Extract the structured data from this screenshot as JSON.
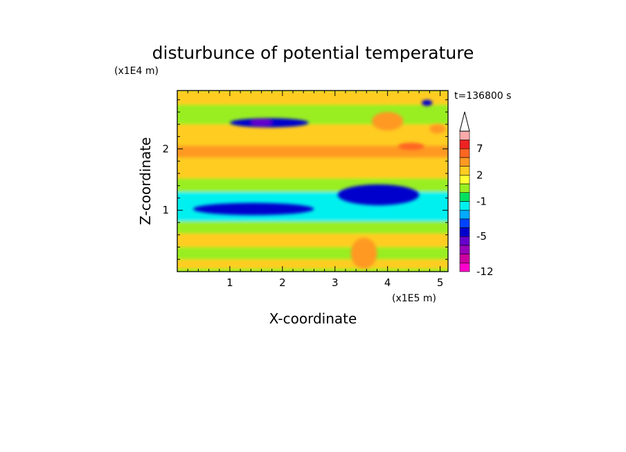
{
  "chart_data": {
    "type": "heatmap",
    "title": "disturbunce of potential temperature",
    "time_label": "t=136800 s",
    "xlabel": "X-coordinate",
    "ylabel": "Z-coordinate",
    "x_unit": "(x1E5 m)",
    "y_unit": "(x1E4 m)",
    "xlim": [
      0,
      5.15
    ],
    "ylim": [
      0,
      2.95
    ],
    "x_ticks": [
      1,
      2,
      3,
      4,
      5
    ],
    "y_ticks": [
      1,
      2
    ],
    "colorbar": {
      "boundaries": [
        -12,
        -10,
        -8,
        -6,
        -5,
        -4,
        -3,
        -2,
        -1,
        0,
        1,
        2,
        3,
        5,
        7,
        9,
        11
      ],
      "colors": [
        "#ff00cc",
        "#cc00a0",
        "#9900bb",
        "#6600cc",
        "#0000cc",
        "#0044ff",
        "#00aaff",
        "#00f0f0",
        "#00e060",
        "#99ee22",
        "#ffff33",
        "#ffcc22",
        "#ff9922",
        "#ff6622",
        "#ee2222",
        "#ffaaaa"
      ],
      "extend": "max",
      "tick_labels": [
        "-12",
        "-5",
        "-1",
        "2",
        "7"
      ],
      "tick_values": [
        -12,
        -5,
        -1,
        2,
        7
      ]
    },
    "features": [
      {
        "x": [
          0.0,
          5.15
        ],
        "z": [
          0.05,
          0.2
        ],
        "value": 2.5
      },
      {
        "x": [
          0.0,
          5.15
        ],
        "z": [
          0.2,
          0.4
        ],
        "value": 0.5
      },
      {
        "x": [
          0.0,
          5.15
        ],
        "z": [
          0.4,
          0.62
        ],
        "value": 2.5
      },
      {
        "x": [
          0.0,
          5.15
        ],
        "z": [
          0.62,
          0.82
        ],
        "value": 0.5
      },
      {
        "x": [
          0.0,
          5.15
        ],
        "z": [
          0.82,
          1.3
        ],
        "value": -1.5
      },
      {
        "x": [
          0.0,
          5.15
        ],
        "z": [
          1.3,
          1.52
        ],
        "value": 0.5
      },
      {
        "x": [
          0.0,
          5.15
        ],
        "z": [
          1.52,
          1.86
        ],
        "value": 2.5
      },
      {
        "x": [
          0.0,
          5.15
        ],
        "z": [
          1.86,
          2.05
        ],
        "value": 3.5
      },
      {
        "x": [
          0.0,
          5.15
        ],
        "z": [
          2.05,
          2.4
        ],
        "value": 2.5
      },
      {
        "x": [
          0.0,
          5.15
        ],
        "z": [
          2.4,
          2.72
        ],
        "value": 0.5
      },
      {
        "x": [
          0.0,
          5.15
        ],
        "z": [
          2.72,
          2.95
        ],
        "value": 2.5
      },
      {
        "x": [
          0.3,
          2.6
        ],
        "z": [
          0.92,
          1.12
        ],
        "value": -4.5
      },
      {
        "x": [
          3.05,
          4.6
        ],
        "z": [
          1.08,
          1.42
        ],
        "value": -4.5
      },
      {
        "x": [
          1.0,
          2.5
        ],
        "z": [
          2.35,
          2.5
        ],
        "value": -4.5
      },
      {
        "x": [
          1.4,
          1.8
        ],
        "z": [
          2.38,
          2.48
        ],
        "value": -5.5
      },
      {
        "x": [
          4.65,
          4.85
        ],
        "z": [
          2.7,
          2.8
        ],
        "value": -4.5
      },
      {
        "x": [
          4.2,
          4.7
        ],
        "z": [
          1.98,
          2.1
        ],
        "value": 6
      },
      {
        "x": [
          3.7,
          4.3
        ],
        "z": [
          2.3,
          2.6
        ],
        "value": 4
      },
      {
        "x": [
          4.8,
          5.1
        ],
        "z": [
          2.25,
          2.4
        ],
        "value": 4
      },
      {
        "x": [
          3.3,
          3.8
        ],
        "z": [
          0.05,
          0.55
        ],
        "value": 4
      }
    ]
  }
}
